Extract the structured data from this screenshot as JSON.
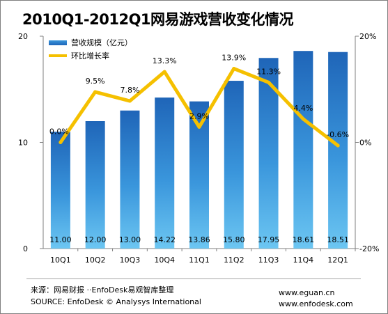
{
  "chart_data": {
    "type": "bar+line",
    "title": "2010Q1-2012Q1网易游戏营收变化情况",
    "categories": [
      "10Q1",
      "10Q2",
      "10Q3",
      "10Q4",
      "11Q1",
      "11Q2",
      "11Q3",
      "11Q4",
      "12Q1"
    ],
    "series": [
      {
        "name": "营收规模（亿元）",
        "type": "bar",
        "axis": "left",
        "values": [
          11.0,
          12.0,
          13.0,
          14.22,
          13.86,
          15.8,
          17.95,
          18.61,
          18.51
        ],
        "labels": [
          "11.00",
          "12.00",
          "13.00",
          "14.22",
          "13.86",
          "15.80",
          "17.95",
          "18.61",
          "18.51"
        ],
        "color": "#2a7fd4"
      },
      {
        "name": "环比增长率",
        "type": "line",
        "axis": "right",
        "values": [
          0.0,
          9.5,
          7.8,
          13.3,
          2.9,
          13.9,
          11.3,
          4.4,
          -0.6
        ],
        "labels": [
          "0.0%",
          "9.5%",
          "7.8%",
          "13.3%",
          "2.9%",
          "13.9%",
          "11.3%",
          "4.4%",
          "-0.6%"
        ],
        "color": "#f5c000"
      }
    ],
    "left_axis": {
      "ylim": [
        0,
        20
      ],
      "ticks": [
        "0",
        "10",
        "20"
      ],
      "tick_values": [
        0,
        10,
        20
      ]
    },
    "right_axis": {
      "ylim": [
        -20,
        20
      ],
      "ticks": [
        "-20%",
        "0%",
        "20%"
      ],
      "tick_values": [
        -20,
        0,
        20
      ]
    },
    "legend_position": "top-left",
    "grid": false
  },
  "footer": {
    "source_cn": "来源：网易财报 ··EnfoDesk易观智库整理",
    "source_en": "SOURCE: EnfoDesk © Analysys International",
    "site1": "www.eguan.cn",
    "site2": "www.enfodesk.com"
  }
}
